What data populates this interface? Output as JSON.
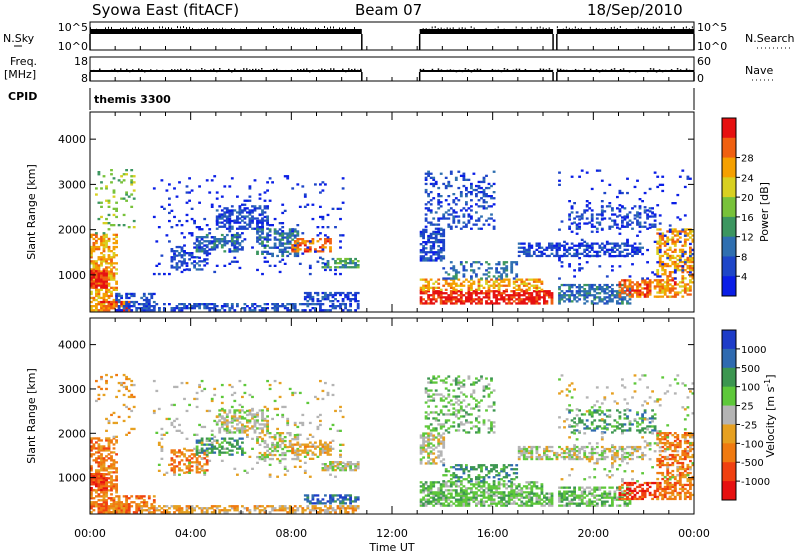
{
  "header": {
    "station": "Syowa East (fitACF)",
    "beam": "Beam 07",
    "date": "18/Sep/2010"
  },
  "strips": {
    "nsky_label": "N.Sky",
    "nsearch_label": "N.Search",
    "nsky_ticks": [
      "10^5",
      "10^0"
    ],
    "nsearch_ticks": [
      "10^5",
      "10^0"
    ],
    "freq_label_top": "Freq.",
    "freq_label_bottom": "[MHz]",
    "freq_ticks": [
      "18",
      "8"
    ],
    "nave_label": "Nave",
    "nave_ticks": [
      "60",
      "0"
    ],
    "cpid_label": "CPID",
    "cpid_value": "themis 3300"
  },
  "chart_data": [
    {
      "type": "heatmap",
      "name": "power",
      "ylabel": "Slant Range [km]",
      "y_ticks": [
        1000,
        2000,
        3000,
        4000
      ],
      "ylim": [
        180,
        4600
      ],
      "xlim": [
        0,
        24
      ],
      "colorbar_label": "Power [dB]",
      "colorbar_ticks": [
        "4",
        "8",
        "12",
        "16",
        "20",
        "24",
        "28"
      ],
      "colorbar_colors": [
        "#0a1ee6",
        "#1e46c8",
        "#2f6fb0",
        "#3c9660",
        "#78c23a",
        "#d8d020",
        "#f5a000",
        "#f06010",
        "#e61010"
      ]
    },
    {
      "type": "heatmap",
      "name": "velocity",
      "ylabel": "Slant Range [km]",
      "y_ticks": [
        1000,
        2000,
        3000,
        4000
      ],
      "ylim": [
        180,
        4600
      ],
      "xlim": [
        0,
        24
      ],
      "xlabel": "Time UT",
      "x_ticks": [
        "00:00",
        "04:00",
        "08:00",
        "12:00",
        "16:00",
        "20:00",
        "00:00"
      ],
      "colorbar_label": "Velocity [m s",
      "colorbar_sup": "-1",
      "colorbar_ticks": [
        "1000",
        "500",
        "100",
        "25",
        "-25",
        "-100",
        "-500",
        "-1000"
      ],
      "colorbar_colors": [
        "#1e3cc8",
        "#2f6ab0",
        "#3c9650",
        "#5ec83a",
        "#b4b4b4",
        "#e6a020",
        "#f07a10",
        "#f04010",
        "#e61010"
      ]
    }
  ]
}
